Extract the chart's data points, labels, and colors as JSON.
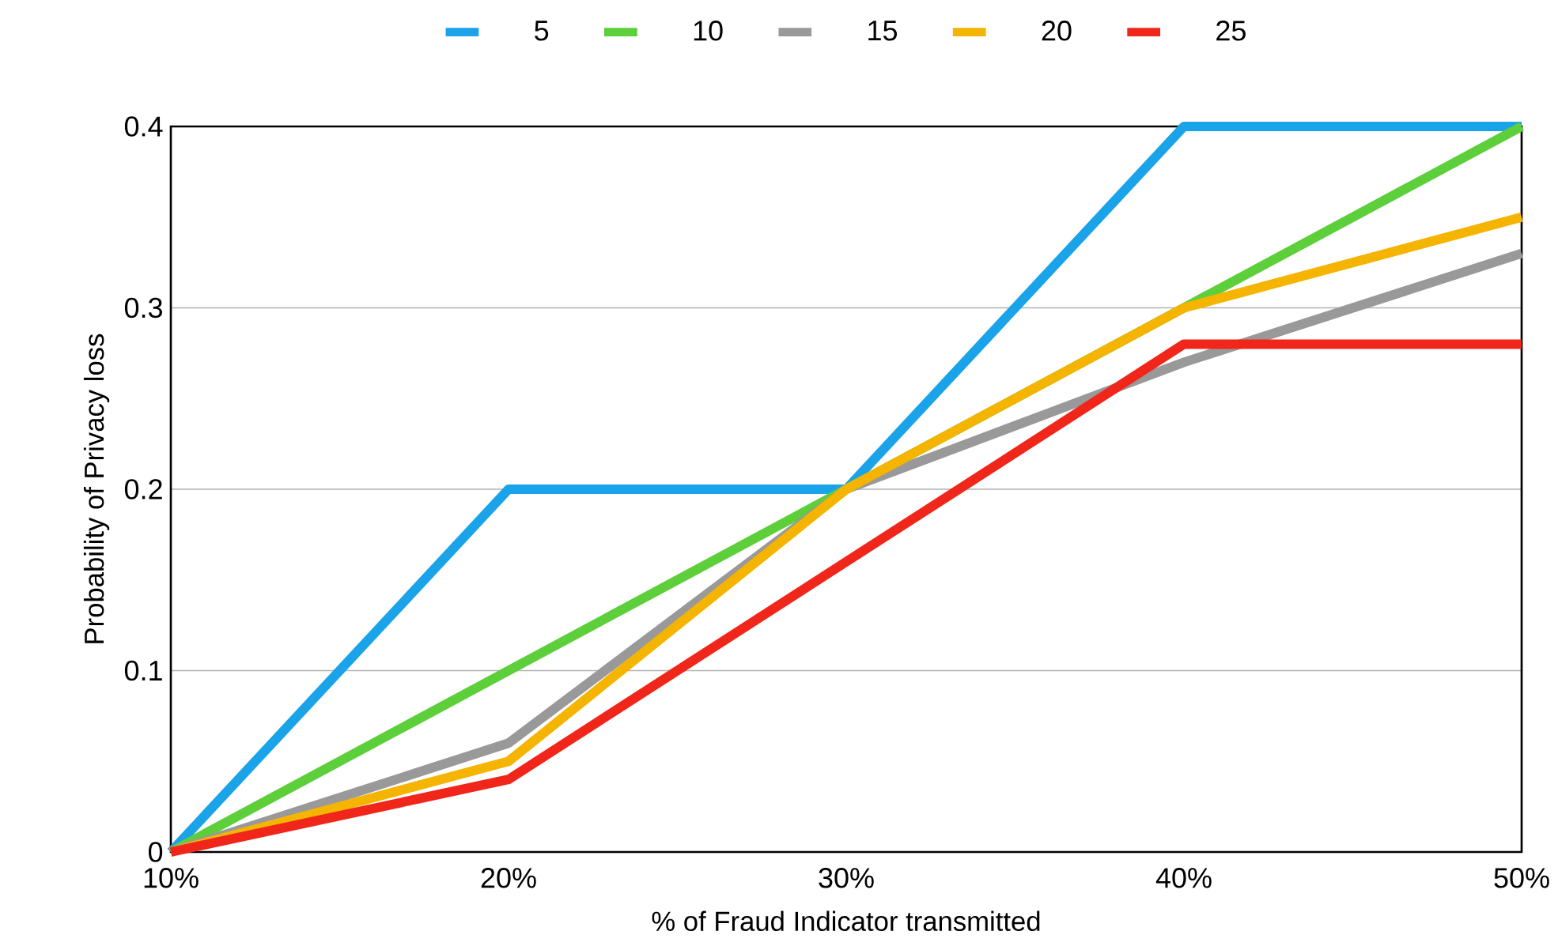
{
  "chart_data": {
    "type": "line",
    "xlabel": "% of Fraud Indicator transmitted",
    "ylabel": "Probability of Privacy loss",
    "categories": [
      "10%",
      "20%",
      "30%",
      "40%",
      "50%"
    ],
    "series": [
      {
        "name": "5",
        "color": "#1aa3e8",
        "values": [
          0,
          0.2,
          0.2,
          0.4,
          0.4
        ]
      },
      {
        "name": "10",
        "color": "#5ccf3a",
        "values": [
          0,
          0.1,
          0.2,
          0.3,
          0.4
        ]
      },
      {
        "name": "15",
        "color": "#999999",
        "values": [
          0,
          0.06,
          0.2,
          0.27,
          0.33
        ]
      },
      {
        "name": "20",
        "color": "#f5b400",
        "values": [
          0,
          0.05,
          0.2,
          0.3,
          0.35
        ]
      },
      {
        "name": "25",
        "color": "#f0261a",
        "values": [
          0,
          0.04,
          0.16,
          0.28,
          0.28
        ]
      }
    ],
    "ylim": [
      0,
      0.4
    ],
    "yticks": [
      0,
      0.1,
      0.2,
      0.3,
      0.4
    ],
    "grid": "y",
    "legend": "top",
    "marker": "none",
    "line_style": "solid"
  }
}
